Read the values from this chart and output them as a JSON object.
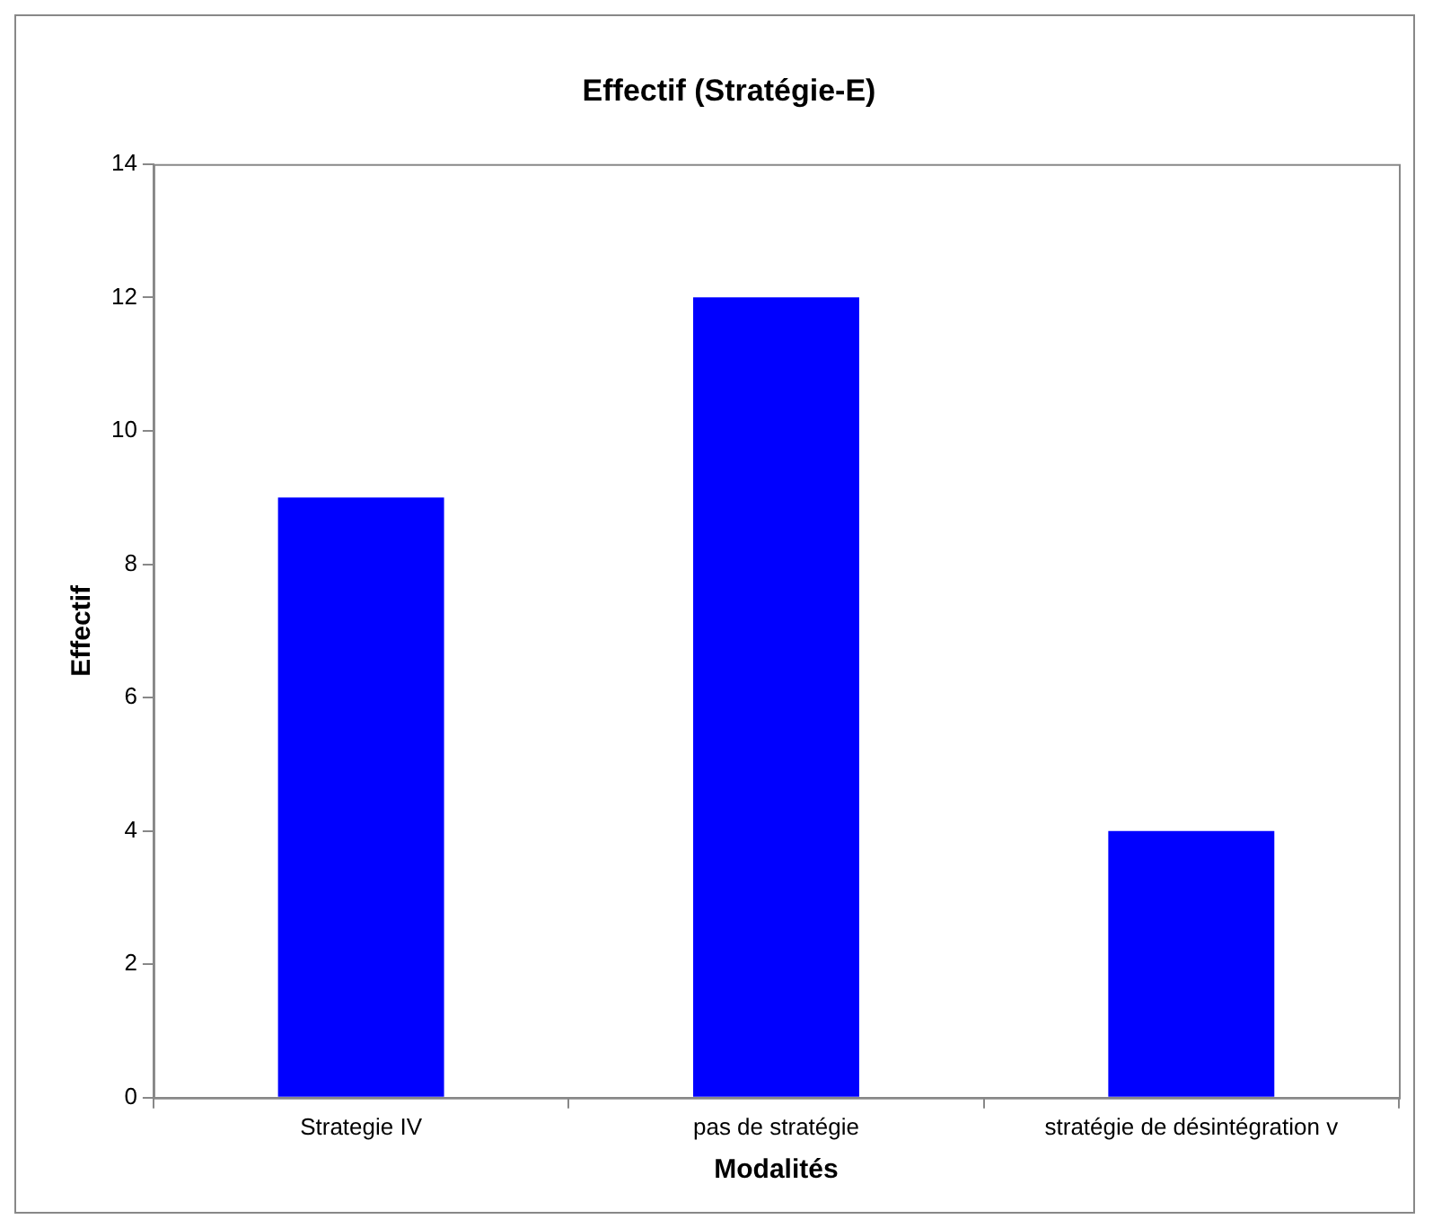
{
  "chart_data": {
    "type": "bar",
    "title": "Effectif (Stratégie-E)",
    "xlabel": "Modalités",
    "ylabel": "Effectif",
    "categories": [
      "Strategie IV",
      "pas de stratégie",
      "stratégie de désintégration v"
    ],
    "values": [
      9,
      12,
      4
    ],
    "color": "#0000ff",
    "ylim": [
      0,
      14
    ],
    "yticks": [
      0,
      2,
      4,
      6,
      8,
      10,
      12,
      14
    ],
    "grid": false,
    "legend": false
  }
}
